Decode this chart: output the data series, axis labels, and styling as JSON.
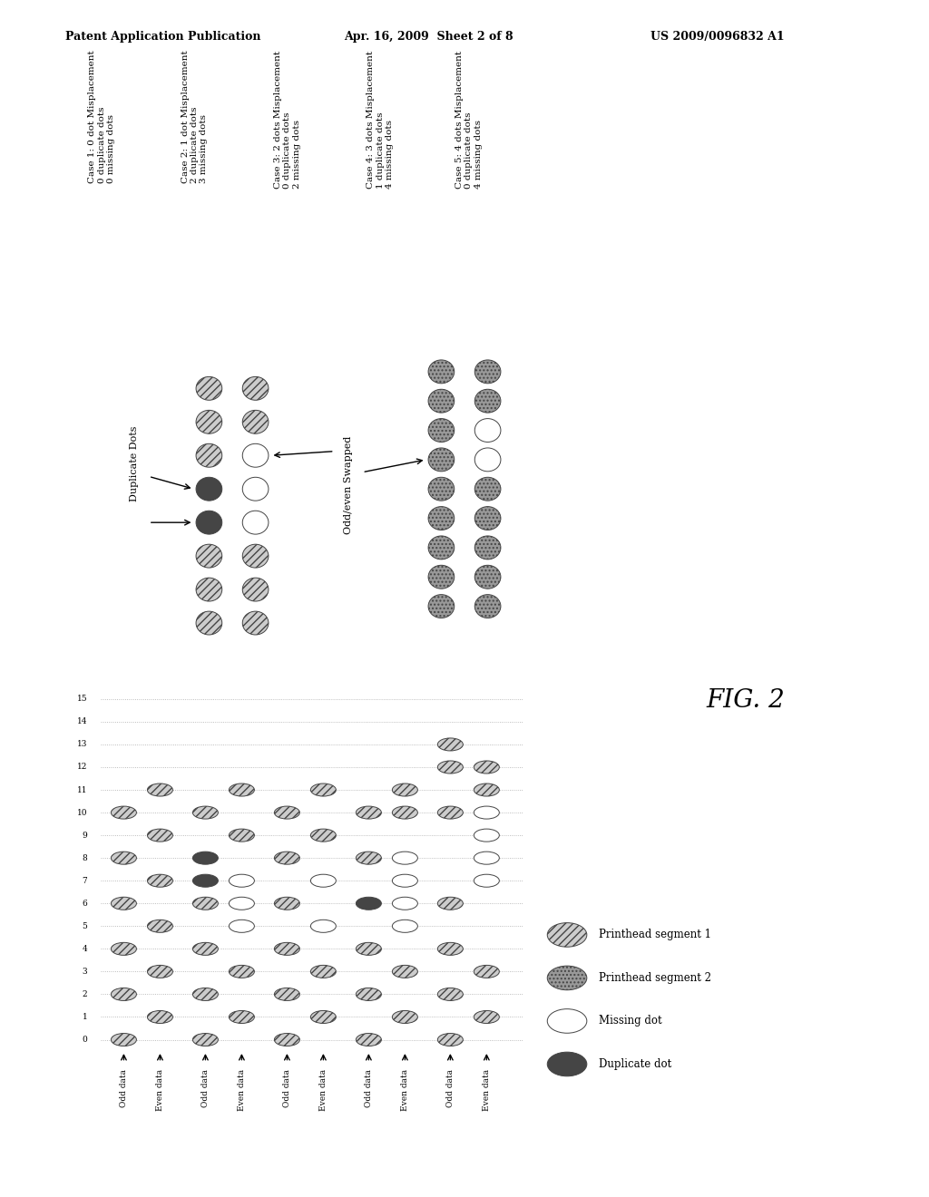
{
  "header_left": "Patent Application Publication",
  "header_mid": "Apr. 16, 2009  Sheet 2 of 8",
  "header_right": "US 2009/0096832 A1",
  "fig_label": "FIG. 2",
  "case_labels": [
    "Case 1: 0 dot Misplacement\n0 duplicate dots\n0 missing dots",
    "Case 2: 1 dot Misplacement\n2 duplicate dots\n3 missing dots",
    "Case 3: 2 dots Misplacement\n0 duplicate dots\n2 missing dots",
    "Case 4: 3 dots Misplacement\n1 duplicate dots\n4 missing dots",
    "Case 5: 4 dots Misplacement\n0 duplicate dots\n4 missing dots"
  ],
  "legend_items": [
    "Printhead segment 1",
    "Printhead segment 2",
    "Missing dot",
    "Duplicate dot"
  ],
  "bg_color": "#ffffff"
}
